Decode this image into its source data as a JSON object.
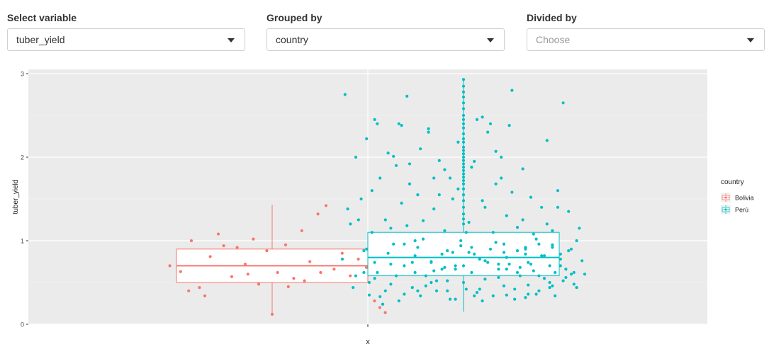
{
  "controls": {
    "variable": {
      "label": "Select variable",
      "value": "tuber_yield"
    },
    "group": {
      "label": "Grouped by",
      "value": "country"
    },
    "divide": {
      "label": "Divided by",
      "value": "",
      "placeholder": "Choose"
    }
  },
  "chart_data": {
    "type": "boxplot",
    "title": "",
    "xlabel": "x",
    "ylabel": "tuber_yield",
    "ylim": [
      0,
      3
    ],
    "y_ticks": [
      0,
      1,
      2,
      3
    ],
    "legend": {
      "title": "country",
      "position": "right",
      "entries": [
        "Bolivia",
        "Perú"
      ]
    },
    "grid": true,
    "series": [
      {
        "name": "Bolivia",
        "color": "#F8766D",
        "box": {
          "q1": 0.5,
          "median": 0.7,
          "q3": 0.9,
          "whisker_low": 0.13,
          "whisker_high": 1.43
        },
        "points": [
          [
            -0.38,
            0.7
          ],
          [
            -0.34,
            0.63
          ],
          [
            -0.31,
            0.4
          ],
          [
            -0.3,
            1.0
          ],
          [
            -0.27,
            0.44
          ],
          [
            -0.23,
            0.81
          ],
          [
            -0.2,
            1.08
          ],
          [
            -0.18,
            0.94
          ],
          [
            -0.15,
            0.57
          ],
          [
            -0.13,
            0.92
          ],
          [
            -0.1,
            0.72
          ],
          [
            -0.07,
            1.02
          ],
          [
            -0.05,
            0.48
          ],
          [
            -0.02,
            0.88
          ],
          [
            0.02,
            0.62
          ],
          [
            0.05,
            0.95
          ],
          [
            0.08,
            0.55
          ],
          [
            0.11,
            1.12
          ],
          [
            0.14,
            0.75
          ],
          [
            0.17,
            1.32
          ],
          [
            0.2,
            1.42
          ],
          [
            0.23,
            0.66
          ],
          [
            0.26,
            0.85
          ],
          [
            0.29,
            0.58
          ],
          [
            0.32,
            0.78
          ],
          [
            0.35,
            0.68
          ],
          [
            0.38,
            0.28
          ],
          [
            0.4,
            0.2
          ],
          [
            0.42,
            0.14
          ],
          [
            -0.25,
            0.34
          ],
          [
            0.0,
            0.12
          ],
          [
            0.06,
            0.45
          ],
          [
            0.12,
            0.52
          ],
          [
            0.18,
            0.62
          ],
          [
            -0.09,
            0.6
          ]
        ]
      },
      {
        "name": "Perú",
        "color": "#00BFC4",
        "box": {
          "q1": 0.58,
          "median": 0.8,
          "q3": 1.1,
          "whisker_low": 0.15,
          "whisker_high": 2.93
        },
        "points": [
          [
            -0.42,
            1.2
          ],
          [
            -0.4,
            0.58
          ],
          [
            -0.39,
            1.25
          ],
          [
            -0.37,
            0.62
          ],
          [
            -0.36,
            2.22
          ],
          [
            -0.35,
            0.5
          ],
          [
            -0.34,
            1.6
          ],
          [
            -0.33,
            0.74
          ],
          [
            -0.32,
            2.4
          ],
          [
            -0.31,
            0.33
          ],
          [
            -0.3,
            0.24
          ],
          [
            -0.29,
            0.4
          ],
          [
            -0.27,
            1.15
          ],
          [
            -0.26,
            2.01
          ],
          [
            -0.25,
            0.58
          ],
          [
            -0.24,
            2.4
          ],
          [
            -0.23,
            1.45
          ],
          [
            -0.22,
            0.36
          ],
          [
            -0.21,
            2.73
          ],
          [
            -0.2,
            1.68
          ],
          [
            -0.19,
            0.74
          ],
          [
            -0.18,
            1.0
          ],
          [
            -0.17,
            0.4
          ],
          [
            -0.16,
            2.1
          ],
          [
            -0.15,
            1.24
          ],
          [
            -0.14,
            0.46
          ],
          [
            -0.13,
            2.34
          ],
          [
            -0.12,
            0.75
          ],
          [
            -0.11,
            1.75
          ],
          [
            -0.1,
            0.52
          ],
          [
            -0.09,
            1.55
          ],
          [
            -0.08,
            0.84
          ],
          [
            -0.07,
            1.85
          ],
          [
            -0.06,
            0.4
          ],
          [
            -0.05,
            0.3
          ],
          [
            -0.04,
            1.5
          ],
          [
            -0.03,
            0.66
          ],
          [
            -0.02,
            2.18
          ],
          [
            -0.01,
            1.0
          ],
          [
            0.0,
            0.5
          ],
          [
            0.01,
            1.1
          ],
          [
            0.02,
            0.86
          ],
          [
            0.03,
            1.88
          ],
          [
            0.04,
            0.34
          ],
          [
            0.05,
            2.45
          ],
          [
            0.06,
            0.42
          ],
          [
            0.07,
            2.48
          ],
          [
            0.08,
            1.4
          ],
          [
            0.09,
            0.74
          ],
          [
            0.1,
            2.4
          ],
          [
            0.11,
            1.1
          ],
          [
            0.12,
            2.07
          ],
          [
            0.13,
            0.56
          ],
          [
            0.14,
            1.75
          ],
          [
            0.15,
            0.96
          ],
          [
            0.16,
            0.35
          ],
          [
            0.17,
            2.38
          ],
          [
            0.18,
            1.58
          ],
          [
            0.19,
            0.42
          ],
          [
            0.2,
            0.62
          ],
          [
            0.21,
            0.68
          ],
          [
            0.22,
            1.25
          ],
          [
            0.23,
            0.9
          ],
          [
            0.24,
            0.47
          ],
          [
            0.25,
            0.72
          ],
          [
            0.26,
            1.08
          ],
          [
            0.27,
            0.36
          ],
          [
            0.28,
            0.58
          ],
          [
            0.29,
            0.82
          ],
          [
            0.3,
            0.55
          ],
          [
            0.31,
            1.2
          ],
          [
            0.32,
            0.44
          ],
          [
            0.33,
            0.95
          ],
          [
            0.34,
            0.62
          ],
          [
            0.35,
            1.4
          ],
          [
            0.36,
            0.78
          ],
          [
            0.37,
            0.52
          ],
          [
            0.38,
            0.66
          ],
          [
            0.39,
            0.88
          ],
          [
            0.4,
            0.6
          ],
          [
            0.41,
            0.48
          ],
          [
            0.42,
            1.0
          ],
          [
            -0.28,
            0.85
          ],
          [
            -0.11,
            0.64
          ],
          [
            0.07,
            0.28
          ],
          [
            0.23,
            0.32
          ],
          [
            -0.33,
            0.55
          ],
          [
            0.16,
            0.8
          ],
          [
            0.33,
            0.46
          ],
          [
            -0.45,
            0.78
          ],
          [
            -0.44,
            2.75
          ],
          [
            -0.43,
            1.38
          ],
          [
            -0.41,
            0.44
          ],
          [
            -0.4,
            2.0
          ],
          [
            -0.38,
            1.5
          ],
          [
            -0.36,
            0.9
          ],
          [
            -0.35,
            0.35
          ],
          [
            -0.34,
            1.1
          ],
          [
            -0.33,
            2.45
          ],
          [
            -0.32,
            0.62
          ],
          [
            -0.31,
            1.75
          ],
          [
            -0.3,
            0.24
          ],
          [
            -0.29,
            1.25
          ],
          [
            -0.28,
            2.05
          ],
          [
            -0.27,
            0.48
          ],
          [
            -0.26,
            0.96
          ],
          [
            -0.25,
            1.9
          ],
          [
            -0.24,
            0.28
          ],
          [
            -0.23,
            2.38
          ],
          [
            -0.22,
            0.7
          ],
          [
            -0.21,
            1.18
          ],
          [
            -0.2,
            1.92
          ],
          [
            -0.19,
            0.44
          ],
          [
            -0.18,
            0.82
          ],
          [
            -0.17,
            1.55
          ],
          [
            -0.16,
            0.34
          ],
          [
            -0.15,
            1.02
          ],
          [
            -0.14,
            0.58
          ],
          [
            -0.13,
            2.3
          ],
          [
            -0.12,
            0.74
          ],
          [
            -0.11,
            1.38
          ],
          [
            -0.1,
            0.4
          ],
          [
            -0.09,
            1.96
          ],
          [
            -0.08,
            0.66
          ],
          [
            -0.07,
            1.12
          ],
          [
            -0.06,
            0.52
          ],
          [
            -0.05,
            1.75
          ],
          [
            -0.04,
            0.86
          ],
          [
            -0.03,
            0.3
          ],
          [
            -0.02,
            1.62
          ],
          [
            -0.01,
            0.94
          ],
          [
            0.01,
            0.42
          ],
          [
            0.02,
            1.22
          ],
          [
            0.03,
            0.62
          ],
          [
            0.04,
            1.95
          ],
          [
            0.05,
            0.38
          ],
          [
            0.06,
            0.78
          ],
          [
            0.07,
            1.48
          ],
          [
            0.08,
            0.54
          ],
          [
            0.09,
            2.3
          ],
          [
            0.1,
            0.9
          ],
          [
            0.11,
            0.34
          ],
          [
            0.12,
            1.68
          ],
          [
            0.13,
            0.66
          ],
          [
            0.14,
            2.0
          ],
          [
            0.15,
            0.46
          ],
          [
            0.16,
            1.3
          ],
          [
            0.17,
            0.72
          ],
          [
            0.18,
            2.8
          ],
          [
            0.19,
            0.3
          ],
          [
            0.2,
            1.16
          ],
          [
            0.21,
            0.58
          ],
          [
            0.22,
            1.86
          ],
          [
            0.23,
            0.92
          ],
          [
            0.24,
            0.36
          ],
          [
            0.25,
            1.52
          ],
          [
            0.26,
            0.64
          ],
          [
            0.27,
            1.02
          ],
          [
            0.28,
            0.4
          ],
          [
            0.29,
            1.4
          ],
          [
            0.3,
            0.82
          ],
          [
            0.31,
            2.2
          ],
          [
            0.32,
            0.5
          ],
          [
            0.33,
            1.12
          ],
          [
            0.34,
            0.34
          ],
          [
            0.35,
            1.6
          ],
          [
            0.36,
            0.7
          ],
          [
            0.37,
            2.65
          ],
          [
            0.38,
            0.56
          ],
          [
            0.39,
            1.35
          ],
          [
            0.4,
            0.9
          ],
          [
            0.41,
            0.62
          ],
          [
            0.42,
            0.44
          ],
          [
            0.43,
            1.15
          ],
          [
            0.44,
            0.76
          ],
          [
            0.45,
            0.6
          ],
          [
            -0.22,
            0.96
          ],
          [
            -0.18,
            0.62
          ],
          [
            -0.12,
            0.5
          ],
          [
            -0.06,
            0.88
          ],
          [
            0.0,
            0.7
          ],
          [
            0.04,
            0.84
          ],
          [
            0.08,
            0.76
          ],
          [
            0.12,
            0.98
          ],
          [
            0.16,
            0.66
          ],
          [
            0.2,
            0.88
          ],
          [
            0.24,
            0.74
          ],
          [
            0.28,
            0.96
          ],
          [
            0.32,
            0.7
          ],
          [
            0.36,
            0.84
          ],
          [
            -0.37,
            0.88
          ],
          [
            -0.27,
            0.72
          ],
          [
            -0.17,
            0.92
          ],
          [
            -0.07,
            0.68
          ],
          [
            0.03,
            0.92
          ],
          [
            0.13,
            0.72
          ],
          [
            0.23,
            0.84
          ],
          [
            0.33,
            0.92
          ],
          [
            -0.03,
            0.7
          ],
          [
            0.15,
            0.86
          ],
          [
            0.0,
            2.93
          ],
          [
            0.0,
            2.85
          ],
          [
            0.0,
            2.78
          ],
          [
            0.0,
            2.72
          ],
          [
            0.0,
            2.65
          ],
          [
            0.0,
            2.58
          ],
          [
            0.0,
            2.5
          ],
          [
            0.0,
            2.45
          ],
          [
            0.0,
            2.4
          ],
          [
            0.0,
            2.35
          ],
          [
            0.0,
            2.28
          ],
          [
            0.0,
            2.22
          ],
          [
            0.0,
            2.18
          ],
          [
            0.0,
            2.12
          ],
          [
            0.0,
            2.08
          ],
          [
            0.0,
            2.04
          ],
          [
            0.0,
            2.0
          ],
          [
            0.0,
            1.96
          ],
          [
            0.0,
            1.92
          ],
          [
            0.0,
            1.88
          ],
          [
            0.0,
            1.84
          ],
          [
            0.0,
            1.8
          ],
          [
            0.0,
            1.76
          ],
          [
            0.0,
            1.72
          ],
          [
            0.0,
            1.68
          ],
          [
            0.0,
            1.62
          ],
          [
            0.0,
            1.55
          ],
          [
            0.0,
            1.48
          ],
          [
            0.0,
            1.4
          ],
          [
            0.0,
            1.32
          ],
          [
            0.0,
            1.26
          ],
          [
            0.0,
            1.2
          ]
        ]
      }
    ]
  }
}
